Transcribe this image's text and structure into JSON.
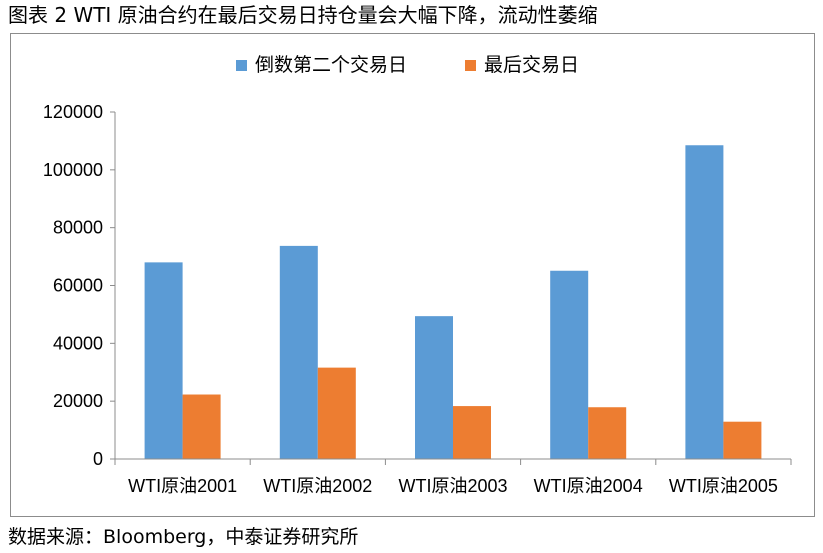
{
  "figure": {
    "title": "图表 2 WTI 原油合约在最后交易日持仓量会大幅下降，流动性萎缩",
    "source": "数据来源：Bloomberg，中泰证券研究所"
  },
  "chart_data": {
    "type": "bar",
    "categories": [
      "WTI原油2001",
      "WTI原油2002",
      "WTI原油2003",
      "WTI原油2004",
      "WTI原油2005"
    ],
    "series": [
      {
        "name": "倒数第二个交易日",
        "color": "#5b9bd5",
        "values": [
          68000,
          73700,
          49400,
          65100,
          108500
        ]
      },
      {
        "name": "最后交易日",
        "color": "#ed7d31",
        "values": [
          22300,
          31600,
          18300,
          17900,
          12900
        ]
      }
    ],
    "ylim": [
      0,
      120000
    ],
    "yticks": [
      "0",
      "20000",
      "40000",
      "60000",
      "80000",
      "100000",
      "120000"
    ],
    "legend_position": "top",
    "grid": false
  }
}
